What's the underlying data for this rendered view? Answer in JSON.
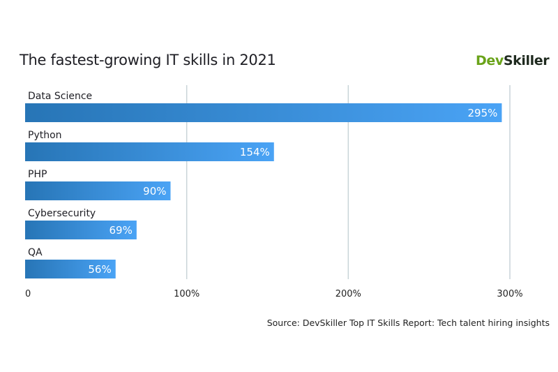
{
  "title": "The fastest-growing IT skills in 2021",
  "brand": {
    "part1": "Dev",
    "part2": "Skiller"
  },
  "source": "Source: DevSkiller Top IT Skills Report: Tech talent hiring insights",
  "colors": {
    "bar_start": "#2775b6",
    "bar_end": "#4aa3f5",
    "grid": "#c9d4d8",
    "brand_green": "#6aa31a"
  },
  "chart_data": {
    "type": "bar",
    "orientation": "horizontal",
    "categories": [
      "Data Science",
      "Python",
      "PHP",
      "Cybersecurity",
      "QA"
    ],
    "values": [
      295,
      154,
      90,
      69,
      56
    ],
    "value_labels": [
      "295%",
      "154%",
      "90%",
      "69%",
      "56%"
    ],
    "title": "The fastest-growing IT skills in 2021",
    "xlim": [
      0,
      300
    ],
    "xticks": [
      0,
      100,
      200,
      300
    ],
    "xtick_labels": [
      "0",
      "100%",
      "200%",
      "300%"
    ],
    "grid": true
  }
}
